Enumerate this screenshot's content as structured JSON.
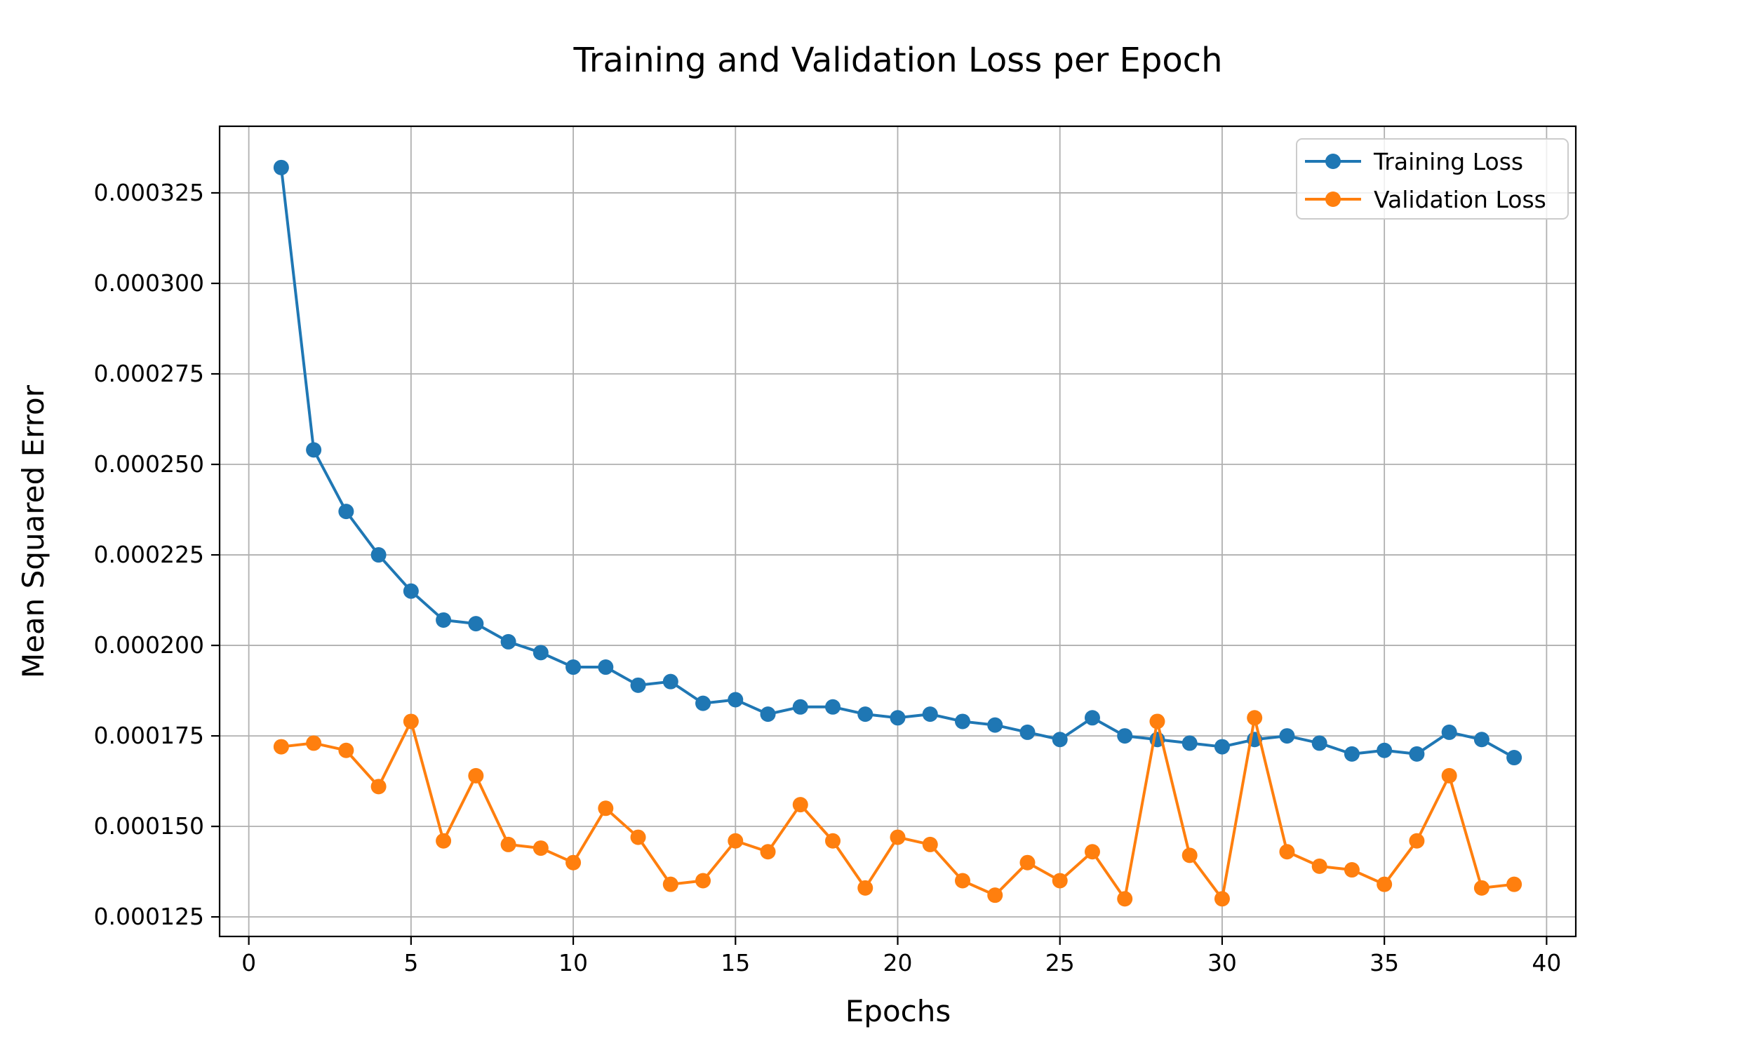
{
  "title": "Training and Validation Loss per Epoch",
  "xlabel": "Epochs",
  "ylabel": "Mean Squared Error",
  "legend": {
    "items": [
      {
        "label": "Training Loss",
        "color": "#1f77b4"
      },
      {
        "label": "Validation Loss",
        "color": "#ff7f0e"
      }
    ],
    "position": "upper right"
  },
  "colors": {
    "training": "#1f77b4",
    "validation": "#ff7f0e",
    "grid": "#b0b0b0",
    "spine": "#000000",
    "background": "#ffffff",
    "legend_border": "#cccccc"
  },
  "chart_data": {
    "type": "line",
    "title": "Training and Validation Loss per Epoch",
    "xlabel": "Epochs",
    "ylabel": "Mean Squared Error",
    "grid": true,
    "legend_position": "upper right",
    "epochs": [
      1,
      2,
      3,
      4,
      5,
      6,
      7,
      8,
      9,
      10,
      11,
      12,
      13,
      14,
      15,
      16,
      17,
      18,
      19,
      20,
      21,
      22,
      23,
      24,
      25,
      26,
      27,
      28,
      29,
      30,
      31,
      32,
      33,
      34,
      35,
      36,
      37,
      38,
      39
    ],
    "series": [
      {
        "name": "Training Loss",
        "color": "#1f77b4",
        "values": [
          0.000332,
          0.000254,
          0.000237,
          0.000225,
          0.000215,
          0.000207,
          0.000206,
          0.000201,
          0.000198,
          0.000194,
          0.000194,
          0.000189,
          0.00019,
          0.000184,
          0.000185,
          0.000181,
          0.000183,
          0.000183,
          0.000181,
          0.00018,
          0.000181,
          0.000179,
          0.000178,
          0.000176,
          0.000174,
          0.00018,
          0.000175,
          0.000174,
          0.000173,
          0.000172,
          0.000174,
          0.000175,
          0.000173,
          0.00017,
          0.000171,
          0.00017,
          0.000176,
          0.000174,
          0.000169
        ]
      },
      {
        "name": "Validation Loss",
        "color": "#ff7f0e",
        "values": [
          0.000172,
          0.000173,
          0.000171,
          0.000161,
          0.000179,
          0.000146,
          0.000164,
          0.000145,
          0.000144,
          0.00014,
          0.000155,
          0.000147,
          0.000134,
          0.000135,
          0.000146,
          0.000143,
          0.000156,
          0.000146,
          0.000133,
          0.000147,
          0.000145,
          0.000135,
          0.000131,
          0.00014,
          0.000135,
          0.000143,
          0.00013,
          0.000179,
          0.000142,
          0.00013,
          0.00018,
          0.000143,
          0.000139,
          0.000138,
          0.000134,
          0.000146,
          0.000164,
          0.000133,
          0.000134
        ]
      }
    ],
    "xticks": [
      0,
      5,
      10,
      15,
      20,
      25,
      30,
      35,
      40
    ],
    "xtick_labels": [
      "0",
      "5",
      "10",
      "15",
      "20",
      "25",
      "30",
      "35",
      "40"
    ],
    "yticks": [
      0.000125,
      0.00015,
      0.000175,
      0.0002,
      0.000225,
      0.00025,
      0.000275,
      0.0003,
      0.000325
    ],
    "ytick_labels": [
      "0.000125",
      "0.000150",
      "0.000175",
      "0.000200",
      "0.000225",
      "0.000250",
      "0.000275",
      "0.000300",
      "0.000325"
    ],
    "xlim": [
      -0.9,
      40.9
    ],
    "ylim": [
      0.0001196,
      0.0003434
    ]
  }
}
